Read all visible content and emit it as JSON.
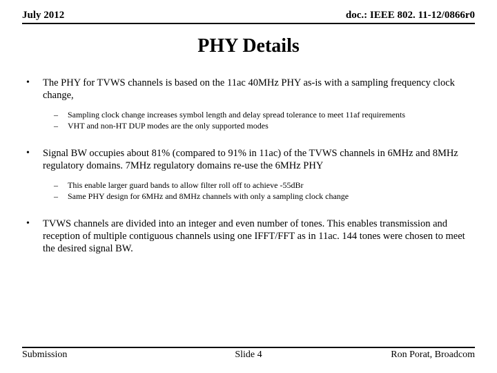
{
  "header": {
    "left": "July 2012",
    "right": "doc.: IEEE 802. 11-12/0866r0"
  },
  "title": "PHY Details",
  "bullets": [
    {
      "text": "The PHY for TVWS channels is based on the 11ac 40MHz PHY as-is with a sampling frequency clock change,",
      "subs": [
        "Sampling clock change increases symbol length and delay spread tolerance to meet 11af requirements",
        "VHT and non-HT DUP modes are the only supported modes"
      ]
    },
    {
      "text": "Signal BW occupies about 81% (compared to 91% in 11ac) of the TVWS channels in 6MHz and 8MHz regulatory domains.  7MHz regulatory domains re-use the 6MHz PHY",
      "subs": [
        "This enable larger guard bands to allow filter roll off to achieve -55dBr",
        "Same PHY design for 6MHz and 8MHz channels with only a sampling clock change"
      ]
    },
    {
      "text": "TVWS channels are divided into an integer and even number of tones. This enables transmission and reception of multiple contiguous channels using one IFFT/FFT as in 11ac.  144 tones were chosen to meet the desired signal BW.",
      "subs": []
    }
  ],
  "footer": {
    "left": "Submission",
    "center": "Slide 4",
    "right": "Ron Porat, Broadcom"
  }
}
